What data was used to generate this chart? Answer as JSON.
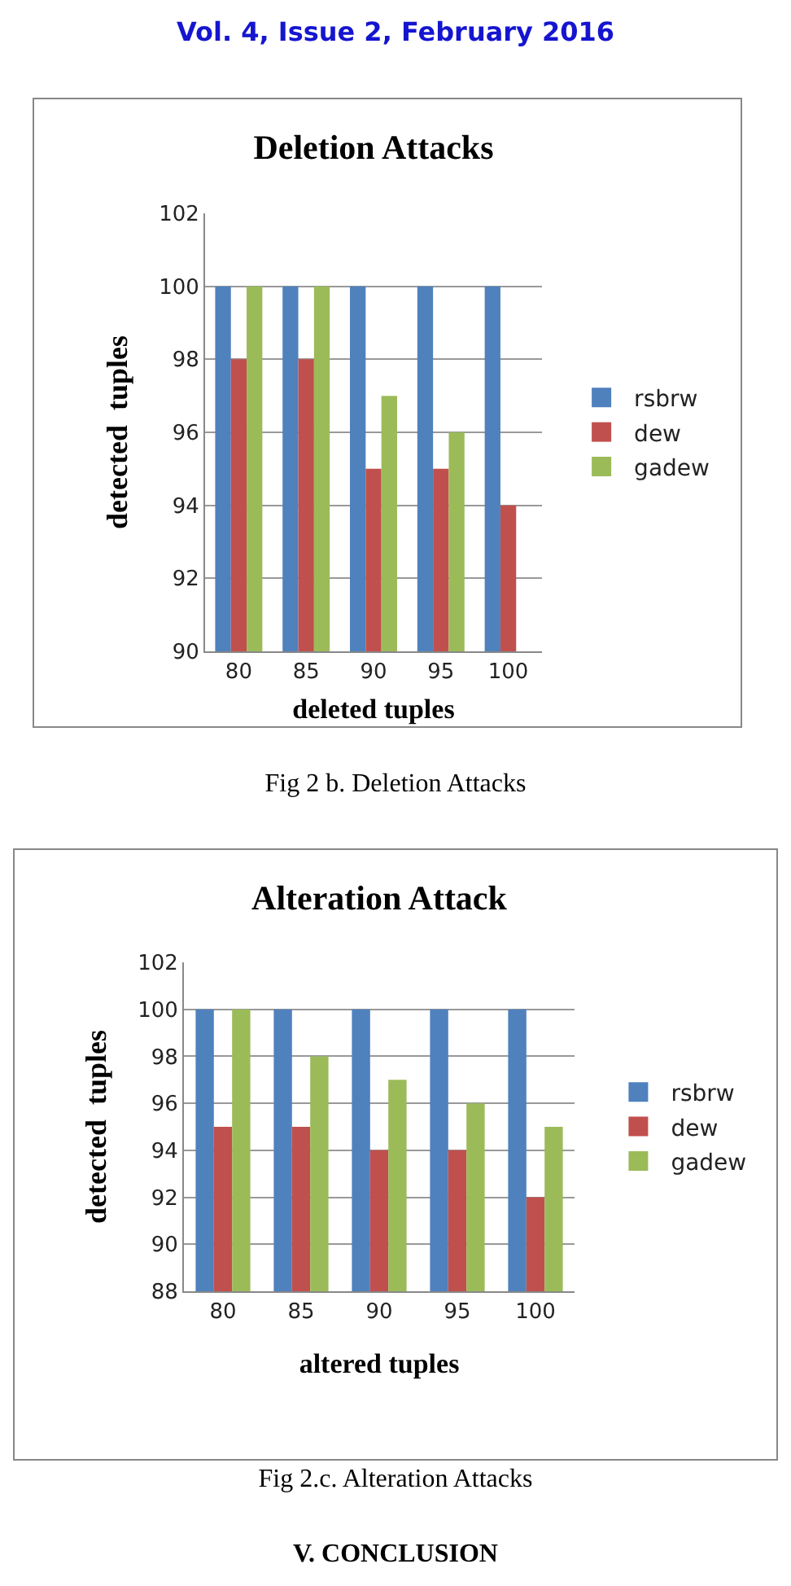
{
  "chart_data": [
    {
      "type": "bar",
      "title": "Deletion Attacks",
      "xlabel": "deleted tuples",
      "ylabel": "detected  tuples",
      "categories": [
        "80",
        "85",
        "90",
        "95",
        "100"
      ],
      "series": [
        {
          "name": "rsbrw",
          "color": "#4f81bd",
          "values": [
            100,
            100,
            100,
            100,
            100
          ]
        },
        {
          "name": "dew",
          "color": "#c0504d",
          "values": [
            98,
            98,
            95,
            95,
            94
          ]
        },
        {
          "name": "gadew",
          "color": "#9bbb59",
          "values": [
            100,
            100,
            97,
            96,
            null
          ]
        }
      ],
      "ylim": [
        90,
        102
      ],
      "yticks": [
        90,
        92,
        94,
        96,
        98,
        100,
        102
      ],
      "grid": "y",
      "legend": "right",
      "annotations": [
        "Vol. 4, Issue 2, February 2016",
        "Fig 2 b. Deletion Attacks"
      ]
    },
    {
      "type": "bar",
      "title": "Alteration Attack",
      "xlabel": "altered tuples",
      "ylabel": "detected  tuples",
      "categories": [
        "80",
        "85",
        "90",
        "95",
        "100"
      ],
      "series": [
        {
          "name": "rsbrw",
          "color": "#4f81bd",
          "values": [
            100,
            100,
            100,
            100,
            100
          ]
        },
        {
          "name": "dew",
          "color": "#c0504d",
          "values": [
            95,
            95,
            94,
            94,
            92
          ]
        },
        {
          "name": "gadew",
          "color": "#9bbb59",
          "values": [
            100,
            98,
            97,
            96,
            95
          ]
        }
      ],
      "ylim": [
        88,
        102
      ],
      "yticks": [
        88,
        90,
        92,
        94,
        96,
        98,
        100,
        102
      ],
      "grid": "y",
      "legend": "right",
      "annotations": [
        "Fig 2.c. Alteration  Attacks",
        "V.       CONCLUSION"
      ]
    }
  ]
}
